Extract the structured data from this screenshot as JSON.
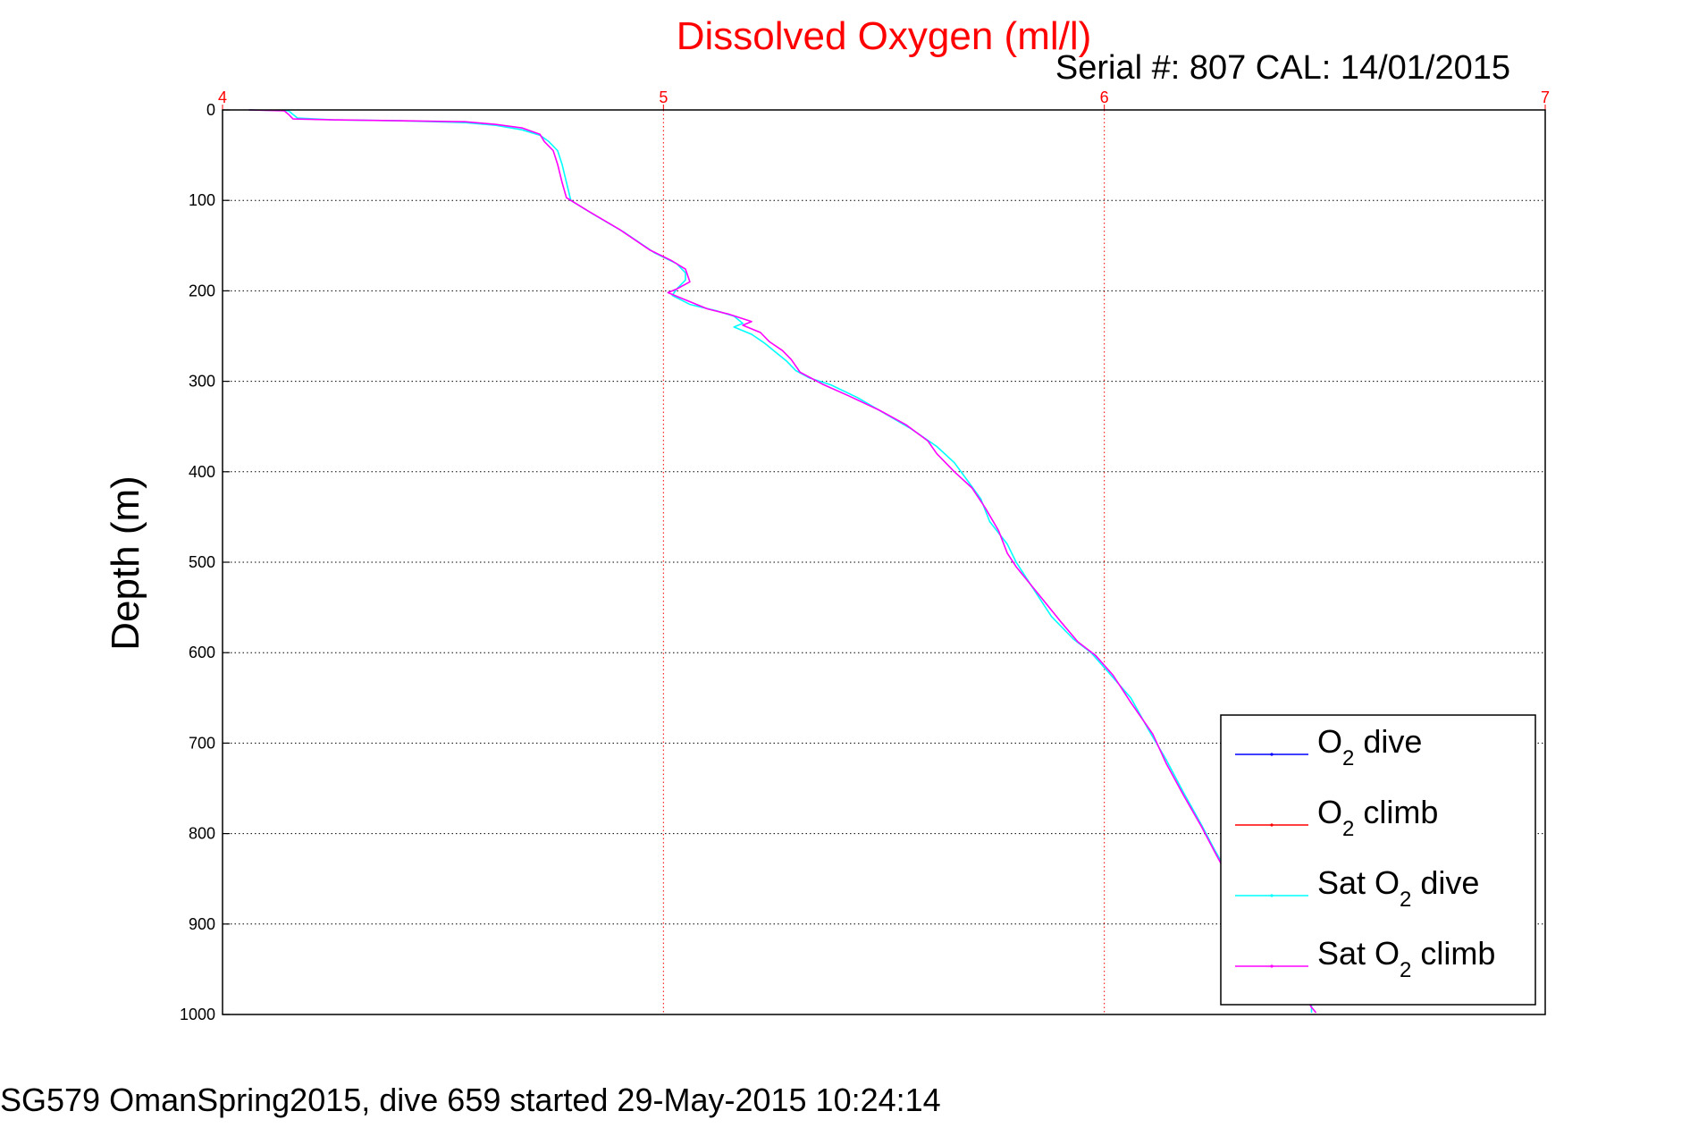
{
  "footer": "SG579 OmanSpring2015, dive 659 started 29-May-2015 10:24:14",
  "chart_data": {
    "type": "line",
    "title": "Dissolved Oxygen (ml/l)",
    "subtitle": "Serial #: 807  CAL: 14/01/2015",
    "xlabel": "",
    "ylabel": "Depth (m)",
    "xlim": [
      4,
      7
    ],
    "ylim": [
      0,
      1000
    ],
    "y_reversed": true,
    "x_axis_position": "top",
    "x_ticks": [
      "4",
      "5",
      "6",
      "7"
    ],
    "y_ticks": [
      "0",
      "100",
      "200",
      "300",
      "400",
      "500",
      "600",
      "700",
      "800",
      "900",
      "1000"
    ],
    "grid": true,
    "legend_position": "bottom-right",
    "legend": [
      {
        "base": "O",
        "sub": "2",
        "rest": " dive",
        "color": "#0000ff"
      },
      {
        "base": "O",
        "sub": "2",
        "rest": " climb",
        "color": "#ff0000"
      },
      {
        "base": "Sat O",
        "sub": "2",
        "rest": " dive",
        "color": "#00ffff"
      },
      {
        "base": "Sat O",
        "sub": "2",
        "rest": " climb",
        "color": "#ff00ff"
      }
    ],
    "series": [
      {
        "name": "O2 dive",
        "color": "#0000ff",
        "points": []
      },
      {
        "name": "O2 climb",
        "color": "#ff0000",
        "points": []
      },
      {
        "name": "Sat O2 dive",
        "color": "#00ffff",
        "points": [
          [
            4.06,
            0
          ],
          [
            4.15,
            1
          ],
          [
            4.16,
            5
          ],
          [
            4.17,
            9
          ],
          [
            4.25,
            11
          ],
          [
            4.4,
            12
          ],
          [
            4.55,
            14
          ],
          [
            4.62,
            17
          ],
          [
            4.68,
            22
          ],
          [
            4.72,
            28
          ],
          [
            4.74,
            35
          ],
          [
            4.76,
            45
          ],
          [
            4.77,
            60
          ],
          [
            4.78,
            80
          ],
          [
            4.79,
            100
          ],
          [
            4.84,
            115
          ],
          [
            4.91,
            135
          ],
          [
            4.98,
            158
          ],
          [
            5.03,
            170
          ],
          [
            5.05,
            180
          ],
          [
            5.05,
            188
          ],
          [
            5.03,
            198
          ],
          [
            5.02,
            205
          ],
          [
            5.06,
            215
          ],
          [
            5.12,
            222
          ],
          [
            5.16,
            228
          ],
          [
            5.18,
            236
          ],
          [
            5.16,
            240
          ],
          [
            5.2,
            248
          ],
          [
            5.23,
            258
          ],
          [
            5.25,
            266
          ],
          [
            5.28,
            278
          ],
          [
            5.3,
            288
          ],
          [
            5.33,
            296
          ],
          [
            5.38,
            304
          ],
          [
            5.44,
            318
          ],
          [
            5.5,
            335
          ],
          [
            5.56,
            352
          ],
          [
            5.62,
            372
          ],
          [
            5.66,
            390
          ],
          [
            5.69,
            410
          ],
          [
            5.72,
            430
          ],
          [
            5.74,
            455
          ],
          [
            5.78,
            480
          ],
          [
            5.8,
            500
          ],
          [
            5.84,
            530
          ],
          [
            5.88,
            560
          ],
          [
            5.93,
            585
          ],
          [
            5.97,
            600
          ],
          [
            6.01,
            622
          ],
          [
            6.06,
            650
          ],
          [
            6.1,
            685
          ],
          [
            6.14,
            718
          ],
          [
            6.18,
            755
          ],
          [
            6.22,
            790
          ],
          [
            6.25,
            818
          ],
          [
            6.27,
            835
          ],
          [
            6.31,
            870
          ],
          [
            6.38,
            920
          ],
          [
            6.44,
            965
          ],
          [
            6.47,
            990
          ],
          [
            6.47,
            998
          ]
        ]
      },
      {
        "name": "Sat O2 climb",
        "color": "#ff00ff",
        "points": [
          [
            4.06,
            0
          ],
          [
            4.14,
            1
          ],
          [
            4.15,
            5
          ],
          [
            4.16,
            10
          ],
          [
            4.25,
            11
          ],
          [
            4.4,
            12
          ],
          [
            4.55,
            13
          ],
          [
            4.62,
            16
          ],
          [
            4.68,
            20
          ],
          [
            4.72,
            27
          ],
          [
            4.73,
            35
          ],
          [
            4.75,
            45
          ],
          [
            4.76,
            60
          ],
          [
            4.77,
            80
          ],
          [
            4.78,
            97
          ],
          [
            4.83,
            112
          ],
          [
            4.9,
            132
          ],
          [
            4.97,
            155
          ],
          [
            5.02,
            167
          ],
          [
            5.05,
            176
          ],
          [
            5.06,
            190
          ],
          [
            5.03,
            198
          ],
          [
            5.01,
            202
          ],
          [
            5.05,
            210
          ],
          [
            5.1,
            220
          ],
          [
            5.15,
            226
          ],
          [
            5.2,
            234
          ],
          [
            5.18,
            238
          ],
          [
            5.22,
            246
          ],
          [
            5.24,
            256
          ],
          [
            5.27,
            266
          ],
          [
            5.29,
            276
          ],
          [
            5.31,
            290
          ],
          [
            5.36,
            303
          ],
          [
            5.42,
            316
          ],
          [
            5.49,
            332
          ],
          [
            5.55,
            348
          ],
          [
            5.6,
            366
          ],
          [
            5.62,
            380
          ],
          [
            5.66,
            400
          ],
          [
            5.7,
            418
          ],
          [
            5.73,
            440
          ],
          [
            5.76,
            465
          ],
          [
            5.78,
            490
          ],
          [
            5.8,
            505
          ],
          [
            5.85,
            535
          ],
          [
            5.9,
            565
          ],
          [
            5.94,
            588
          ],
          [
            5.98,
            603
          ],
          [
            6.02,
            625
          ],
          [
            6.06,
            655
          ],
          [
            6.11,
            690
          ],
          [
            6.14,
            722
          ],
          [
            6.18,
            758
          ],
          [
            6.22,
            792
          ],
          [
            6.25,
            820
          ],
          [
            6.27,
            838
          ],
          [
            6.32,
            875
          ],
          [
            6.38,
            925
          ],
          [
            6.44,
            968
          ],
          [
            6.47,
            992
          ],
          [
            6.48,
            998
          ]
        ]
      }
    ]
  }
}
